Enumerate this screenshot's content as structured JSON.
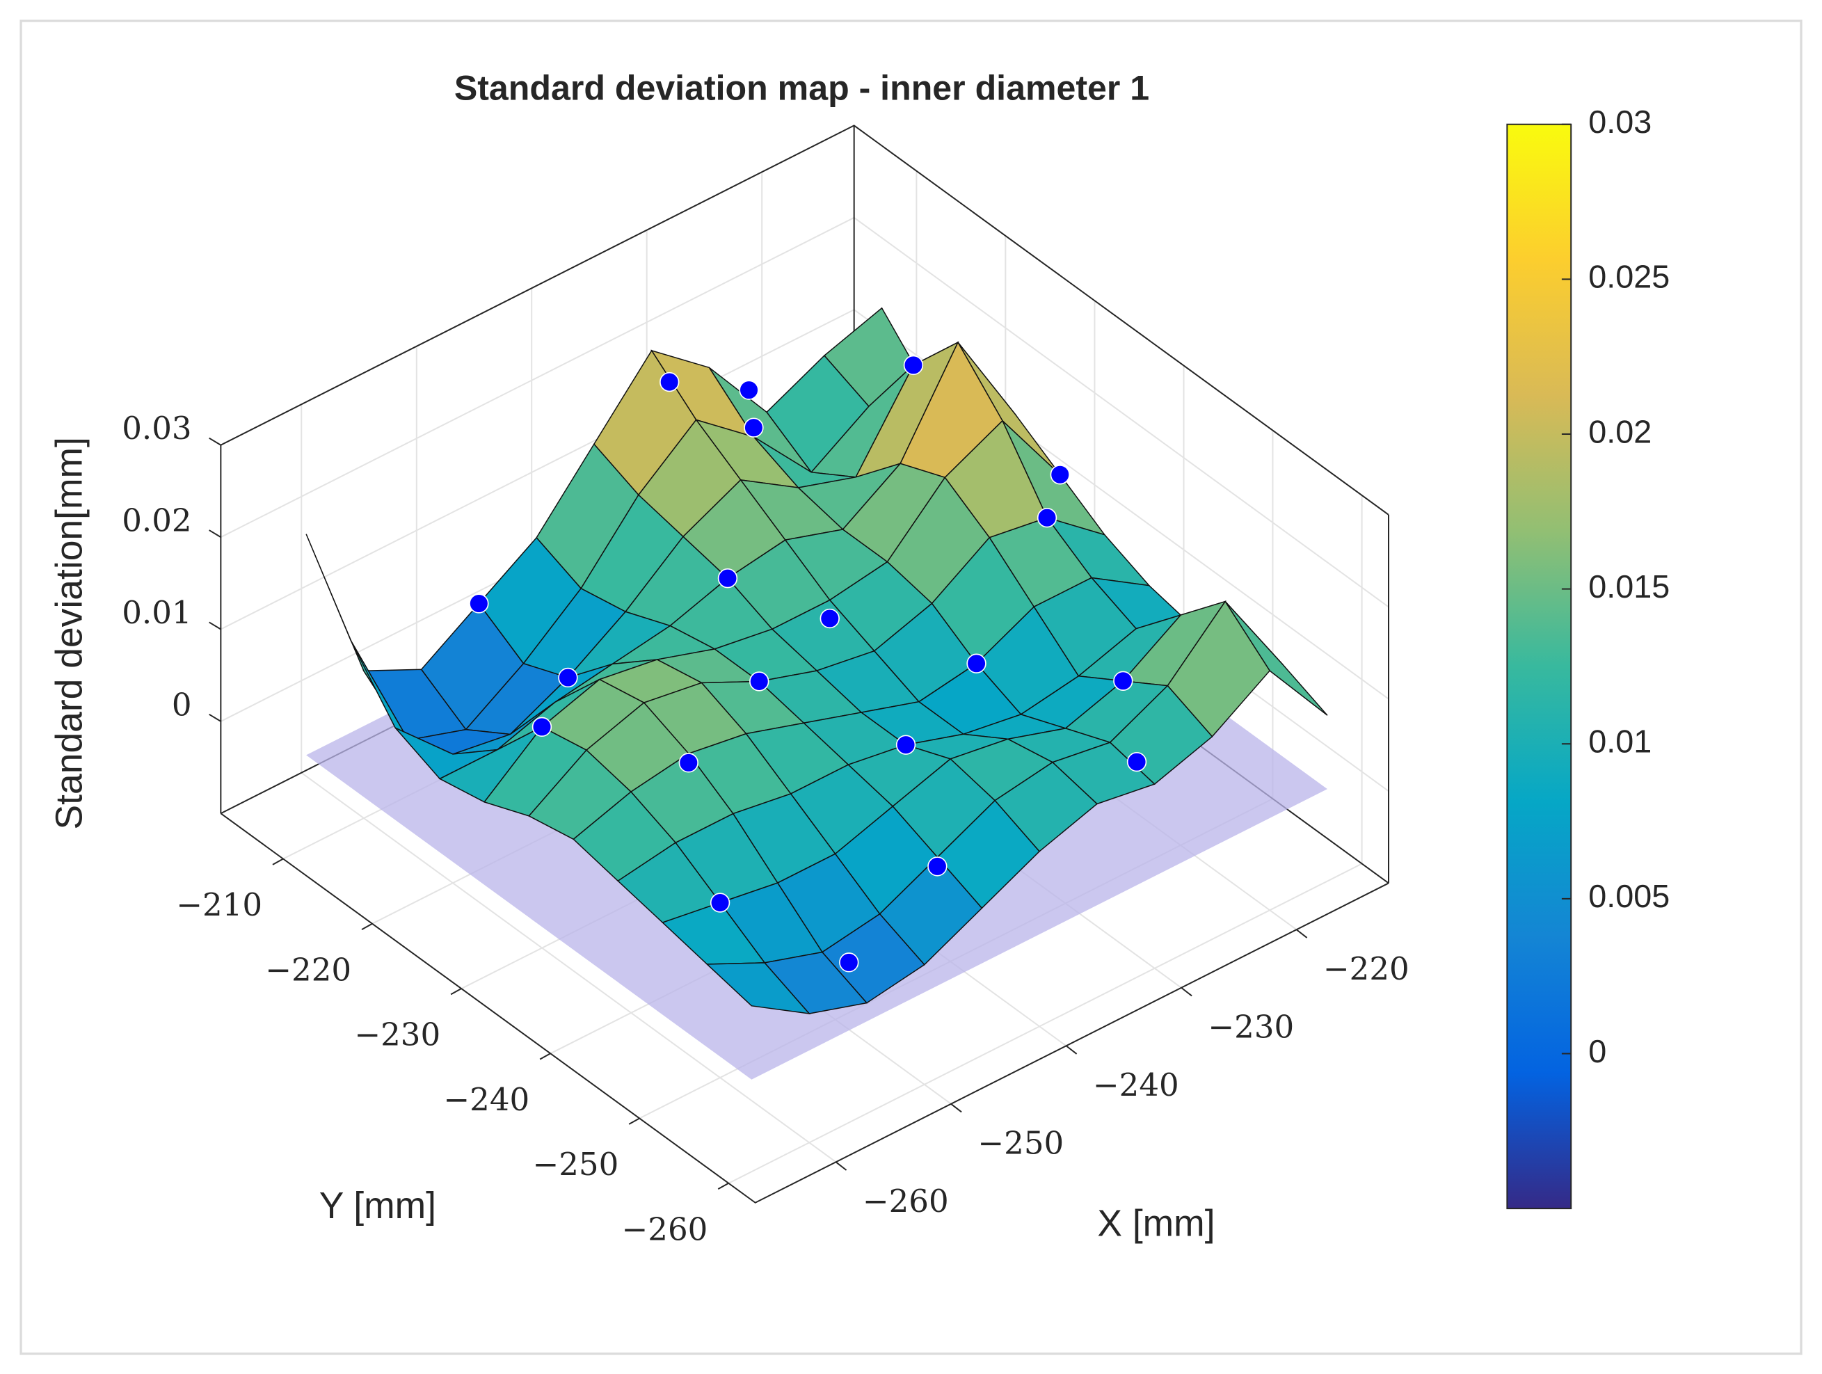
{
  "chart_data": {
    "type": "surface",
    "title": "Standard deviation map - inner diameter 1",
    "xlabel": "X [mm]",
    "ylabel": "Y [mm]",
    "zlabel": "Standard deviation[mm]",
    "x": [
      -265,
      -260,
      -255,
      -250,
      -245,
      -240,
      -235,
      -230,
      -225,
      -220,
      -215
    ],
    "y": [
      -260,
      -255,
      -250,
      -245,
      -240,
      -235,
      -230,
      -225,
      -220,
      -215,
      -210
    ],
    "z": [
      [
        0.008,
        0.004,
        0.002,
        0.003,
        0.006,
        0.009,
        0.011,
        0.01,
        0.012,
        0.016,
        0.008
      ],
      [
        0.009,
        0.006,
        0.004,
        0.005,
        0.008,
        0.011,
        0.012,
        0.011,
        0.014,
        0.02,
        0.01
      ],
      [
        0.01,
        0.009,
        0.008,
        0.008,
        0.01,
        0.012,
        0.011,
        0.009,
        0.011,
        0.015,
        0.009
      ],
      [
        0.011,
        0.012,
        0.012,
        0.011,
        0.011,
        0.01,
        0.008,
        0.007,
        0.008,
        0.01,
        0.007
      ],
      [
        0.012,
        0.014,
        0.015,
        0.014,
        0.012,
        0.01,
        0.008,
        0.009,
        0.012,
        0.012,
        0.008
      ],
      [
        0.011,
        0.015,
        0.017,
        0.016,
        0.013,
        0.011,
        0.01,
        0.012,
        0.016,
        0.015,
        0.01
      ],
      [
        0.009,
        0.014,
        0.016,
        0.015,
        0.013,
        0.012,
        0.012,
        0.013,
        0.019,
        0.022,
        0.013
      ],
      [
        0.008,
        0.008,
        0.01,
        0.011,
        0.012,
        0.014,
        0.015,
        0.013,
        0.017,
        0.027,
        0.016
      ],
      [
        0.01,
        0.004,
        0.003,
        0.006,
        0.01,
        0.015,
        0.018,
        0.014,
        0.012,
        0.021,
        0.014
      ],
      [
        0.016,
        0.002,
        0.0,
        0.004,
        0.009,
        0.016,
        0.021,
        0.016,
        0.009,
        0.013,
        0.012
      ],
      [
        0.024,
        0.006,
        0.003,
        0.007,
        0.011,
        0.018,
        0.025,
        0.02,
        0.012,
        0.015,
        0.017
      ]
    ],
    "points": {
      "color": "#0000ff",
      "x": [
        -260,
        -255,
        -245,
        -240,
        -235,
        -230,
        -225,
        -220,
        -250,
        -240,
        -230,
        -220,
        -260,
        -250,
        -235,
        -225,
        -215,
        -245,
        -255,
        -230
      ],
      "y": [
        -250,
        -240,
        -255,
        -245,
        -230,
        -240,
        -250,
        -235,
        -220,
        -225,
        -215,
        -220,
        -230,
        -210,
        -212,
        -208,
        -230,
        -235,
        -258,
        -258
      ],
      "z": [
        0.009,
        0.014,
        0.007,
        0.01,
        0.01,
        0.009,
        0.011,
        0.015,
        0.006,
        0.014,
        0.017,
        0.021,
        0.014,
        0.007,
        0.023,
        0.013,
        0.013,
        0.013,
        0.005,
        0.011
      ]
    },
    "xlim": [
      -267,
      -212
    ],
    "ylim": [
      -263,
      -203
    ],
    "zlim": [
      -0.01,
      0.03
    ],
    "xticks": [
      {
        "value": -260,
        "label": "−260"
      },
      {
        "value": -250,
        "label": "−250"
      },
      {
        "value": -240,
        "label": "−240"
      },
      {
        "value": -230,
        "label": "−230"
      },
      {
        "value": -220,
        "label": "−220"
      }
    ],
    "yticks": [
      {
        "value": -260,
        "label": "−260"
      },
      {
        "value": -250,
        "label": "−250"
      },
      {
        "value": -240,
        "label": "−240"
      },
      {
        "value": -230,
        "label": "−230"
      },
      {
        "value": -220,
        "label": "−220"
      },
      {
        "value": -210,
        "label": "−210"
      }
    ],
    "zticks": [
      0,
      0.01,
      0.02,
      0.03
    ],
    "grid": true,
    "clim": [
      -0.005,
      0.03
    ],
    "cticks": [
      0,
      0.005,
      0.01,
      0.015,
      0.02,
      0.025,
      0.03
    ],
    "colormap": [
      "#352a87",
      "#0363e1",
      "#1485d4",
      "#06a7c6",
      "#38b99e",
      "#92bf73",
      "#d9ba56",
      "#fcce2e",
      "#f9fb0e"
    ]
  }
}
